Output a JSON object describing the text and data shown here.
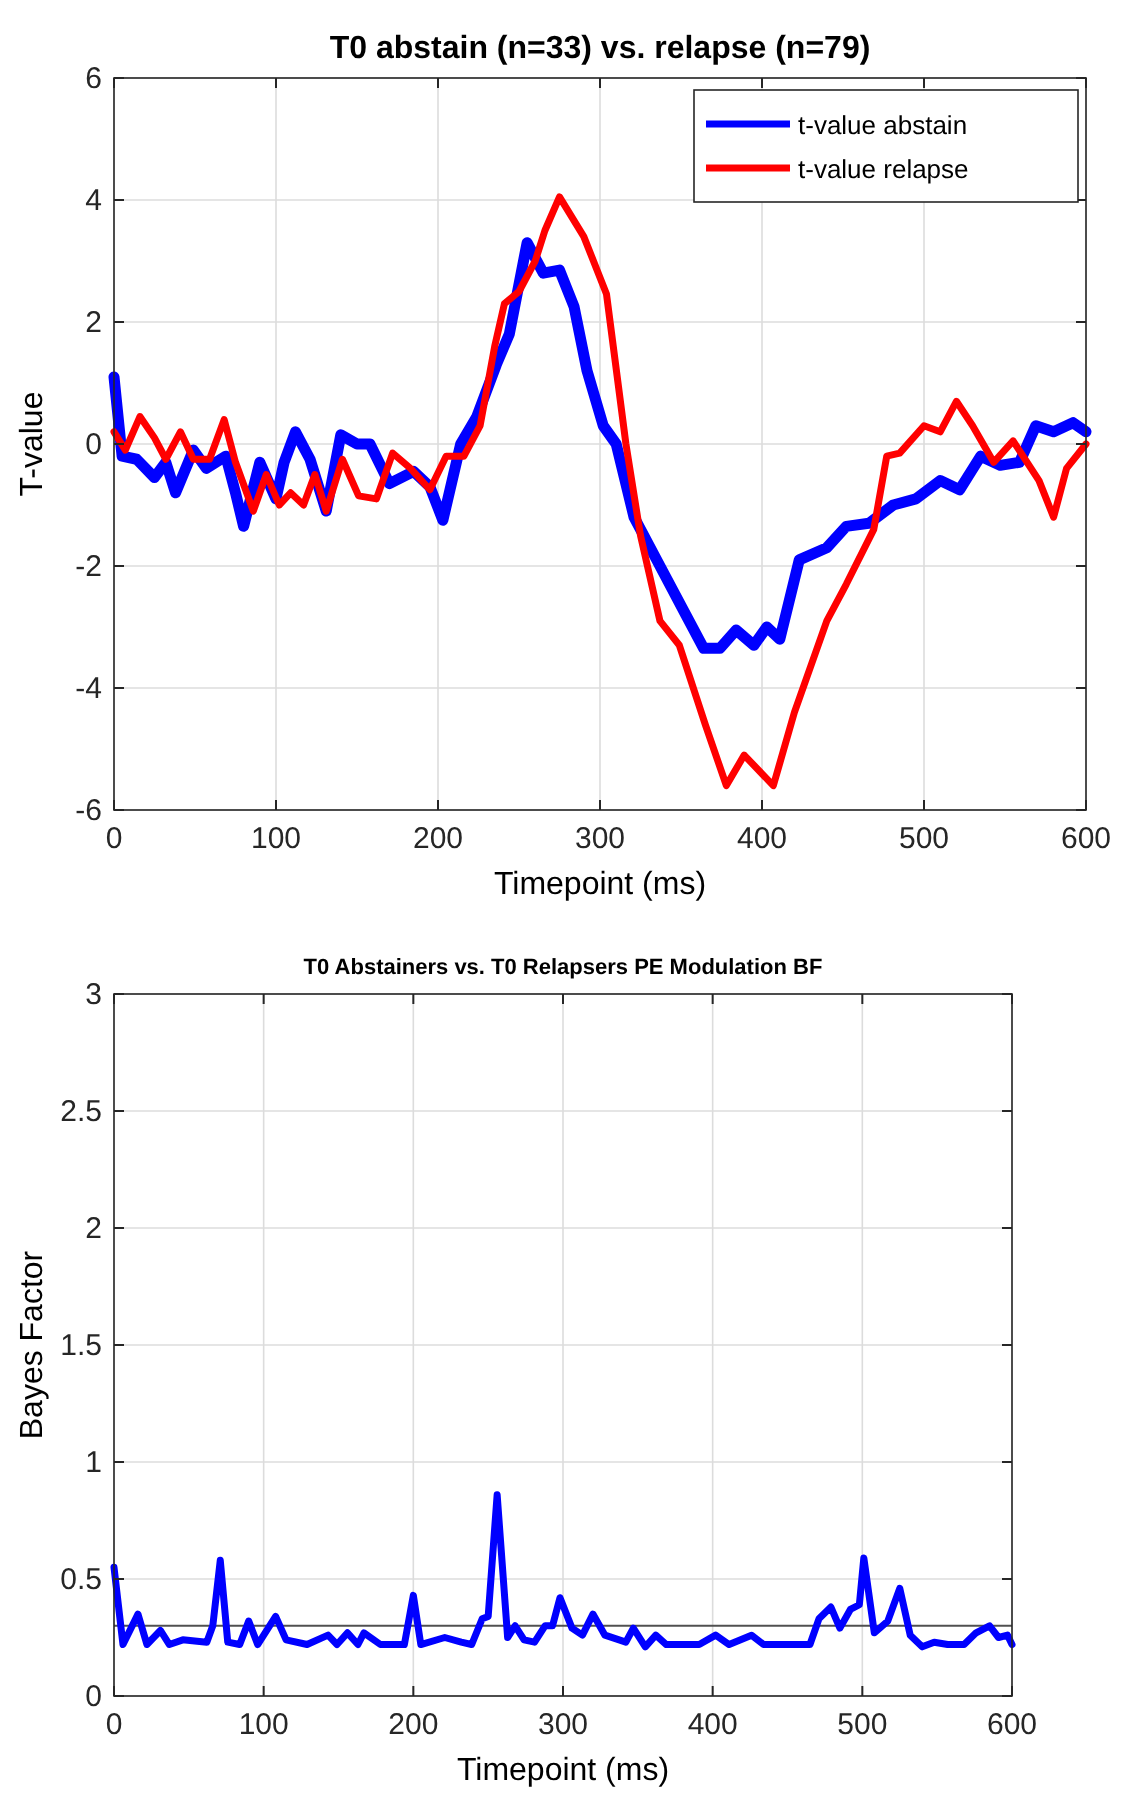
{
  "chart_data": [
    {
      "type": "line",
      "title": "T0 abstain (n=33) vs. relapse (n=79)",
      "xlabel": "Timepoint (ms)",
      "ylabel": "T-value",
      "xlim": [
        0,
        600
      ],
      "xticks": [
        0,
        100,
        200,
        300,
        400,
        500,
        600
      ],
      "ylim": [
        -6,
        6
      ],
      "yticks": [
        -6,
        -4,
        -2,
        0,
        2,
        4,
        6
      ],
      "grid": true,
      "legend": "top right",
      "line_style": "solid",
      "series": [
        {
          "name": "t-value abstain",
          "color": "#0000ff",
          "x": [
            0,
            5,
            14,
            25,
            32,
            38,
            49,
            57,
            69,
            75,
            80,
            90,
            100,
            105,
            112,
            121,
            131,
            140,
            150,
            158,
            170,
            185,
            195,
            203,
            214,
            224,
            236,
            244,
            255,
            265,
            275,
            284,
            292,
            302,
            310,
            321,
            337,
            353,
            364,
            374,
            384,
            395,
            403,
            411,
            423,
            440,
            452,
            466,
            481,
            495,
            510,
            522,
            535,
            547,
            559,
            569,
            580,
            592,
            600
          ],
          "values": [
            1.1,
            -0.2,
            -0.25,
            -0.55,
            -0.3,
            -0.8,
            -0.1,
            -0.4,
            -0.2,
            -0.8,
            -1.35,
            -0.3,
            -0.9,
            -0.3,
            0.2,
            -0.25,
            -1.1,
            0.15,
            0.0,
            0.0,
            -0.65,
            -0.45,
            -0.7,
            -1.25,
            0.0,
            0.45,
            1.3,
            1.8,
            3.3,
            2.8,
            2.85,
            2.25,
            1.2,
            0.3,
            0.0,
            -1.2,
            -2.0,
            -2.8,
            -3.35,
            -3.35,
            -3.05,
            -3.3,
            -3.0,
            -3.2,
            -1.9,
            -1.7,
            -1.35,
            -1.3,
            -1.0,
            -0.9,
            -0.6,
            -0.75,
            -0.2,
            -0.35,
            -0.3,
            0.3,
            0.2,
            0.35,
            0.2
          ]
        },
        {
          "name": "t-value relapse",
          "color": "#ff0000",
          "x": [
            0,
            7,
            16,
            25,
            32,
            41,
            49,
            59,
            68,
            75,
            86,
            94,
            102,
            109,
            117,
            124,
            131,
            141,
            151,
            162,
            172,
            183,
            195,
            205,
            216,
            226,
            235,
            241,
            250,
            260,
            266,
            275,
            290,
            304,
            316,
            325,
            337,
            349,
            365,
            378,
            389,
            407,
            420,
            440,
            452,
            469,
            477,
            485,
            500,
            510,
            520,
            530,
            543,
            555,
            571,
            580,
            588,
            600
          ],
          "values": [
            0.2,
            -0.1,
            0.45,
            0.1,
            -0.25,
            0.2,
            -0.25,
            -0.25,
            0.4,
            -0.3,
            -1.1,
            -0.5,
            -1.0,
            -0.8,
            -1.0,
            -0.5,
            -1.1,
            -0.25,
            -0.85,
            -0.9,
            -0.15,
            -0.4,
            -0.75,
            -0.2,
            -0.2,
            0.3,
            1.6,
            2.3,
            2.5,
            3.0,
            3.5,
            4.05,
            3.4,
            2.46,
            0.0,
            -1.5,
            -2.9,
            -3.3,
            -4.6,
            -5.6,
            -5.1,
            -5.6,
            -4.4,
            -2.9,
            -2.3,
            -1.4,
            -0.2,
            -0.15,
            0.3,
            0.2,
            0.7,
            0.3,
            -0.3,
            0.05,
            -0.6,
            -1.2,
            -0.4,
            0.0
          ]
        }
      ]
    },
    {
      "type": "line",
      "title": "T0 Abstainers vs. T0 Relapsers PE Modulation BF",
      "xlabel": "Timepoint (ms)",
      "ylabel": "Bayes Factor",
      "xlim": [
        0,
        600
      ],
      "xticks": [
        0,
        100,
        200,
        300,
        400,
        500,
        600
      ],
      "ylim": [
        0,
        3
      ],
      "yticks": [
        0,
        0.5,
        1,
        1.5,
        2,
        2.5,
        3
      ],
      "grid": true,
      "line_style": "solid",
      "ref_lines": [
        {
          "axis": "y",
          "value": 0.3,
          "color": "#505050"
        }
      ],
      "series": [
        {
          "color": "#0000ff",
          "x": [
            0,
            6,
            16,
            22,
            31,
            37,
            46,
            62,
            66,
            71,
            76,
            84,
            90,
            96,
            108,
            115,
            129,
            143,
            149,
            156,
            163,
            167,
            178,
            194,
            200,
            205,
            221,
            232,
            239,
            246,
            250,
            256,
            263,
            268,
            274,
            281,
            288,
            293,
            298,
            306,
            313,
            320,
            328,
            342,
            347,
            355,
            362,
            369,
            391,
            402,
            411,
            426,
            434,
            465,
            471,
            479,
            485,
            492,
            498,
            501,
            508,
            517,
            525,
            532,
            540,
            548,
            557,
            568,
            576,
            585,
            591,
            597,
            600
          ],
          "values": [
            0.55,
            0.22,
            0.35,
            0.22,
            0.28,
            0.22,
            0.24,
            0.23,
            0.3,
            0.58,
            0.23,
            0.22,
            0.32,
            0.22,
            0.34,
            0.24,
            0.22,
            0.26,
            0.22,
            0.27,
            0.22,
            0.27,
            0.22,
            0.22,
            0.43,
            0.22,
            0.25,
            0.23,
            0.22,
            0.33,
            0.34,
            0.86,
            0.25,
            0.3,
            0.24,
            0.23,
            0.3,
            0.3,
            0.42,
            0.29,
            0.26,
            0.35,
            0.26,
            0.23,
            0.29,
            0.21,
            0.26,
            0.22,
            0.22,
            0.26,
            0.22,
            0.26,
            0.22,
            0.22,
            0.33,
            0.38,
            0.29,
            0.37,
            0.39,
            0.59,
            0.27,
            0.32,
            0.46,
            0.26,
            0.21,
            0.23,
            0.22,
            0.22,
            0.27,
            0.3,
            0.25,
            0.26,
            0.22
          ]
        }
      ]
    }
  ]
}
